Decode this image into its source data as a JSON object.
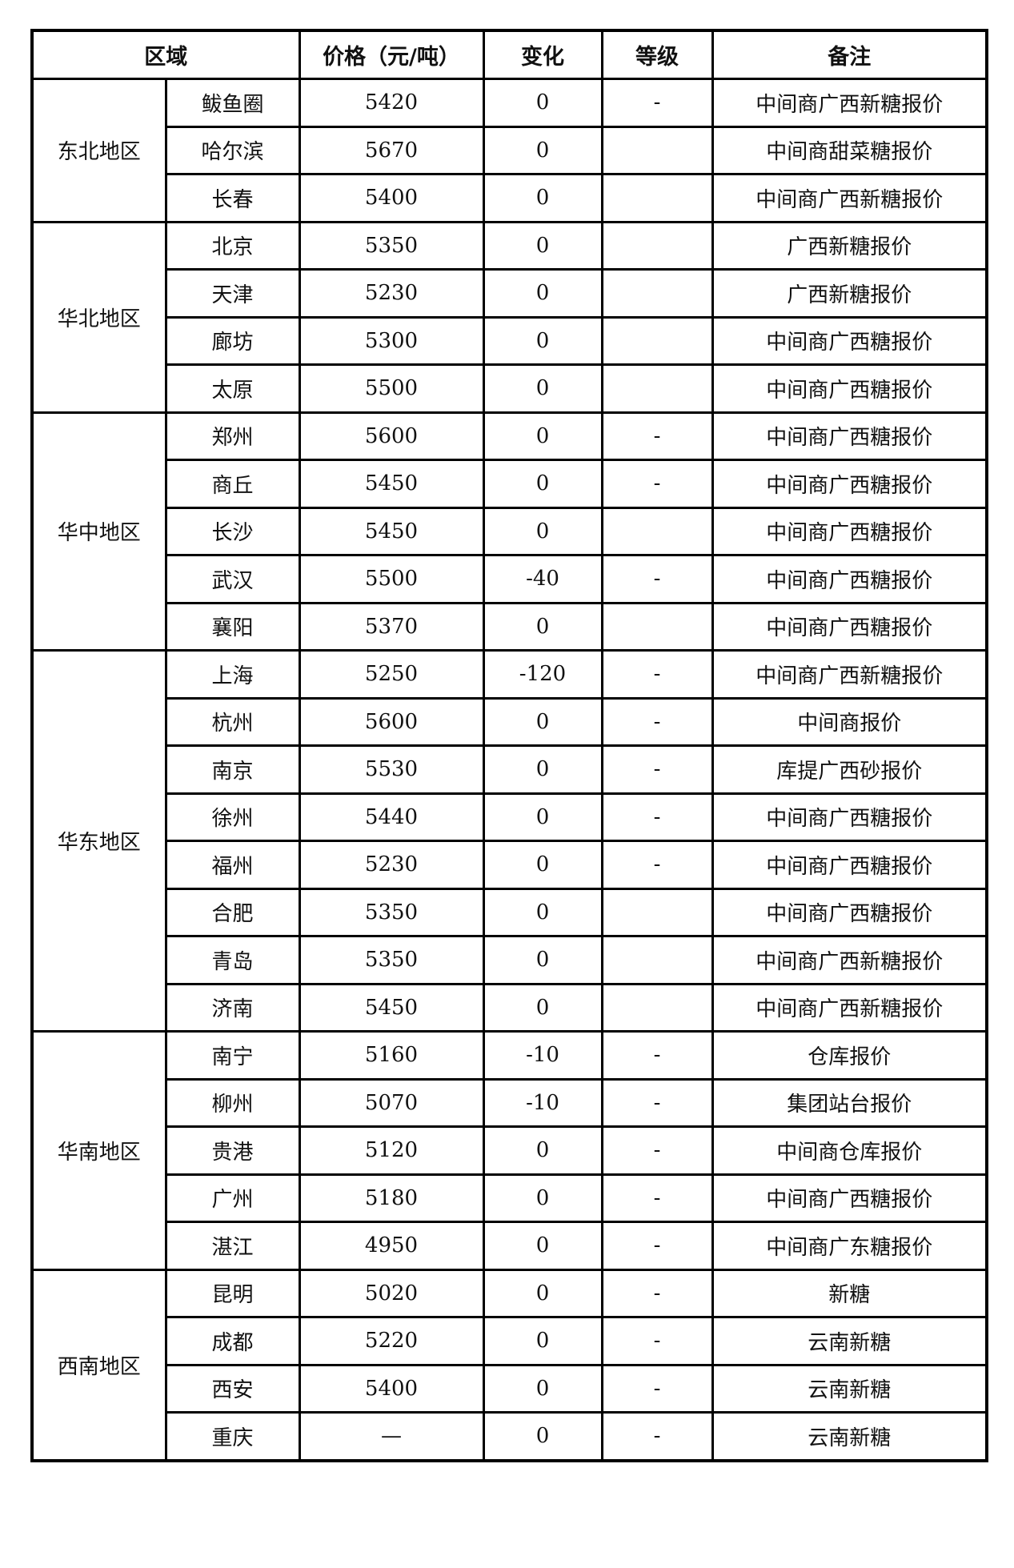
{
  "header": {
    "region": "区域",
    "price": "价格（元/吨）",
    "change": "变化",
    "grade": "等级",
    "note": "备注"
  },
  "groups": [
    {
      "region": "东北地区",
      "rows": [
        {
          "city": "鲅鱼圈",
          "price": "5420",
          "change": "0",
          "grade": "-",
          "note": "中间商广西新糖报价"
        },
        {
          "city": "哈尔滨",
          "price": "5670",
          "change": "0",
          "grade": "",
          "note": "中间商甜菜糖报价"
        },
        {
          "city": "长春",
          "price": "5400",
          "change": "0",
          "grade": "",
          "note": "中间商广西新糖报价"
        }
      ]
    },
    {
      "region": "华北地区",
      "rows": [
        {
          "city": "北京",
          "price": "5350",
          "change": "0",
          "grade": "",
          "note": "广西新糖报价"
        },
        {
          "city": "天津",
          "price": "5230",
          "change": "0",
          "grade": "",
          "note": "广西新糖报价"
        },
        {
          "city": "廊坊",
          "price": "5300",
          "change": "0",
          "grade": "",
          "note": "中间商广西糖报价"
        },
        {
          "city": "太原",
          "price": "5500",
          "change": "0",
          "grade": "",
          "note": "中间商广西糖报价"
        }
      ]
    },
    {
      "region": "华中地区",
      "rows": [
        {
          "city": "郑州",
          "price": "5600",
          "change": "0",
          "grade": "-",
          "note": "中间商广西糖报价"
        },
        {
          "city": "商丘",
          "price": "5450",
          "change": "0",
          "grade": "-",
          "note": "中间商广西糖报价"
        },
        {
          "city": "长沙",
          "price": "5450",
          "change": "0",
          "grade": "",
          "note": "中间商广西糖报价"
        },
        {
          "city": "武汉",
          "price": "5500",
          "change": "-40",
          "grade": "-",
          "note": "中间商广西糖报价"
        },
        {
          "city": "襄阳",
          "price": "5370",
          "change": "0",
          "grade": "",
          "note": "中间商广西糖报价"
        }
      ]
    },
    {
      "region": "华东地区",
      "rows": [
        {
          "city": "上海",
          "price": "5250",
          "change": "-120",
          "grade": "-",
          "note": "中间商广西新糖报价"
        },
        {
          "city": "杭州",
          "price": "5600",
          "change": "0",
          "grade": "-",
          "note": "中间商报价"
        },
        {
          "city": "南京",
          "price": "5530",
          "change": "0",
          "grade": "-",
          "note": "库提广西砂报价"
        },
        {
          "city": "徐州",
          "price": "5440",
          "change": "0",
          "grade": "-",
          "note": "中间商广西糖报价"
        },
        {
          "city": "福州",
          "price": "5230",
          "change": "0",
          "grade": "-",
          "note": "中间商广西糖报价"
        },
        {
          "city": "合肥",
          "price": "5350",
          "change": "0",
          "grade": "",
          "note": "中间商广西糖报价"
        },
        {
          "city": "青岛",
          "price": "5350",
          "change": "0",
          "grade": "",
          "note": "中间商广西新糖报价"
        },
        {
          "city": "济南",
          "price": "5450",
          "change": "0",
          "grade": "",
          "note": "中间商广西新糖报价"
        }
      ]
    },
    {
      "region": "华南地区",
      "rows": [
        {
          "city": "南宁",
          "price": "5160",
          "change": "-10",
          "grade": "-",
          "note": "仓库报价"
        },
        {
          "city": "柳州",
          "price": "5070",
          "change": "-10",
          "grade": "-",
          "note": "集团站台报价"
        },
        {
          "city": "贵港",
          "price": "5120",
          "change": "0",
          "grade": "-",
          "note": "中间商仓库报价"
        },
        {
          "city": "广州",
          "price": "5180",
          "change": "0",
          "grade": "-",
          "note": "中间商广西糖报价"
        },
        {
          "city": "湛江",
          "price": "4950",
          "change": "0",
          "grade": "-",
          "note": "中间商广东糖报价"
        }
      ]
    },
    {
      "region": "西南地区",
      "rows": [
        {
          "city": "昆明",
          "price": "5020",
          "change": "0",
          "grade": "-",
          "note": "新糖"
        },
        {
          "city": "成都",
          "price": "5220",
          "change": "0",
          "grade": "-",
          "note": "云南新糖"
        },
        {
          "city": "西安",
          "price": "5400",
          "change": "0",
          "grade": "-",
          "note": "云南新糖"
        },
        {
          "city": "重庆",
          "price": "—",
          "change": "0",
          "grade": "-",
          "note": "云南新糖"
        }
      ]
    }
  ]
}
